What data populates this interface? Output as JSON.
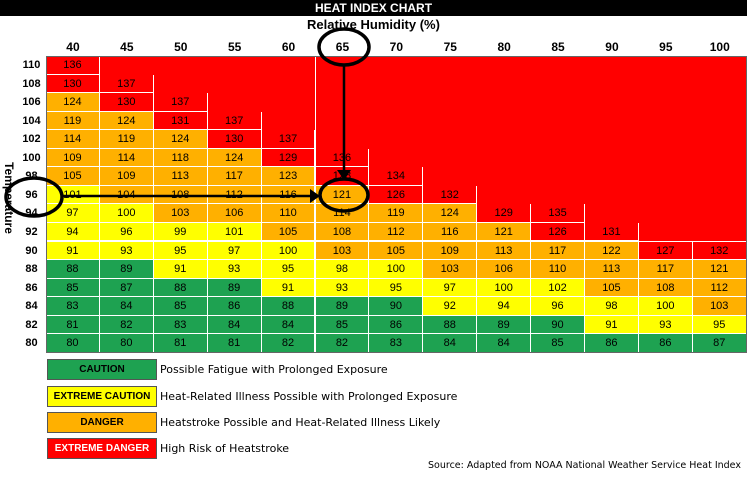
{
  "chart_data": {
    "type": "table",
    "title": "HEAT INDEX CHART",
    "xlabel": "Relative Humidity (%)",
    "ylabel": "Temperature (°F)",
    "humidity": [
      40,
      45,
      50,
      55,
      60,
      65,
      70,
      75,
      80,
      85,
      90,
      95,
      100
    ],
    "temperatures": [
      110,
      108,
      106,
      104,
      102,
      100,
      98,
      96,
      94,
      92,
      90,
      88,
      86,
      84,
      82,
      80
    ],
    "rows": [
      [
        136,
        null,
        null,
        null,
        null,
        null,
        null,
        null,
        null,
        null,
        null,
        null,
        null
      ],
      [
        130,
        137,
        null,
        null,
        null,
        null,
        null,
        null,
        null,
        null,
        null,
        null,
        null
      ],
      [
        124,
        130,
        137,
        null,
        null,
        null,
        null,
        null,
        null,
        null,
        null,
        null,
        null
      ],
      [
        119,
        124,
        131,
        137,
        null,
        null,
        null,
        null,
        null,
        null,
        null,
        null,
        null
      ],
      [
        114,
        119,
        124,
        130,
        137,
        null,
        null,
        null,
        null,
        null,
        null,
        null,
        null
      ],
      [
        109,
        114,
        118,
        124,
        129,
        136,
        null,
        null,
        null,
        null,
        null,
        null,
        null
      ],
      [
        105,
        109,
        113,
        117,
        123,
        128,
        134,
        null,
        null,
        null,
        null,
        null,
        null
      ],
      [
        101,
        104,
        108,
        112,
        116,
        121,
        126,
        132,
        null,
        null,
        null,
        null,
        null
      ],
      [
        97,
        100,
        103,
        106,
        110,
        114,
        119,
        124,
        129,
        135,
        null,
        null,
        null
      ],
      [
        94,
        96,
        99,
        101,
        105,
        108,
        112,
        116,
        121,
        126,
        131,
        null,
        null
      ],
      [
        91,
        93,
        95,
        97,
        100,
        103,
        105,
        109,
        113,
        117,
        122,
        127,
        132
      ],
      [
        88,
        89,
        91,
        93,
        95,
        98,
        100,
        103,
        106,
        110,
        113,
        117,
        121
      ],
      [
        85,
        87,
        88,
        89,
        91,
        93,
        95,
        97,
        100,
        102,
        105,
        108,
        112
      ],
      [
        83,
        84,
        85,
        86,
        88,
        89,
        90,
        92,
        94,
        96,
        98,
        100,
        103
      ],
      [
        81,
        82,
        83,
        84,
        84,
        85,
        86,
        88,
        89,
        90,
        91,
        93,
        95
      ],
      [
        80,
        80,
        81,
        81,
        82,
        82,
        83,
        84,
        84,
        85,
        86,
        86,
        87
      ]
    ],
    "colors": {
      "caution": "#1ea251",
      "extreme_caution": "#ffff00",
      "danger": "#ffb000",
      "extreme_danger": "#ff0000",
      "caution_alt": "#2cb25a"
    },
    "thresholds": {
      "extreme_caution": 91,
      "danger": 103,
      "extreme_danger": 125
    },
    "highlight": {
      "temperature": 96,
      "humidity": 65,
      "value": 121
    }
  },
  "legend": [
    {
      "label": "CAUTION",
      "description": "Possible Fatigue with Prolonged Exposure",
      "color": "#1ea251"
    },
    {
      "label": "EXTREME CAUTION",
      "description": "Heat-Related Illness Possible with Prolonged Exposure",
      "color": "#ffff00"
    },
    {
      "label": "DANGER",
      "description": "Heatstroke Possible and Heat-Related Illness Likely",
      "color": "#ffb000"
    },
    {
      "label": "EXTREME DANGER",
      "description": "High Risk of Heatstroke",
      "color": "#ff0000"
    }
  ],
  "source": "Source: Adapted from NOAA National Weather Service Heat Index"
}
